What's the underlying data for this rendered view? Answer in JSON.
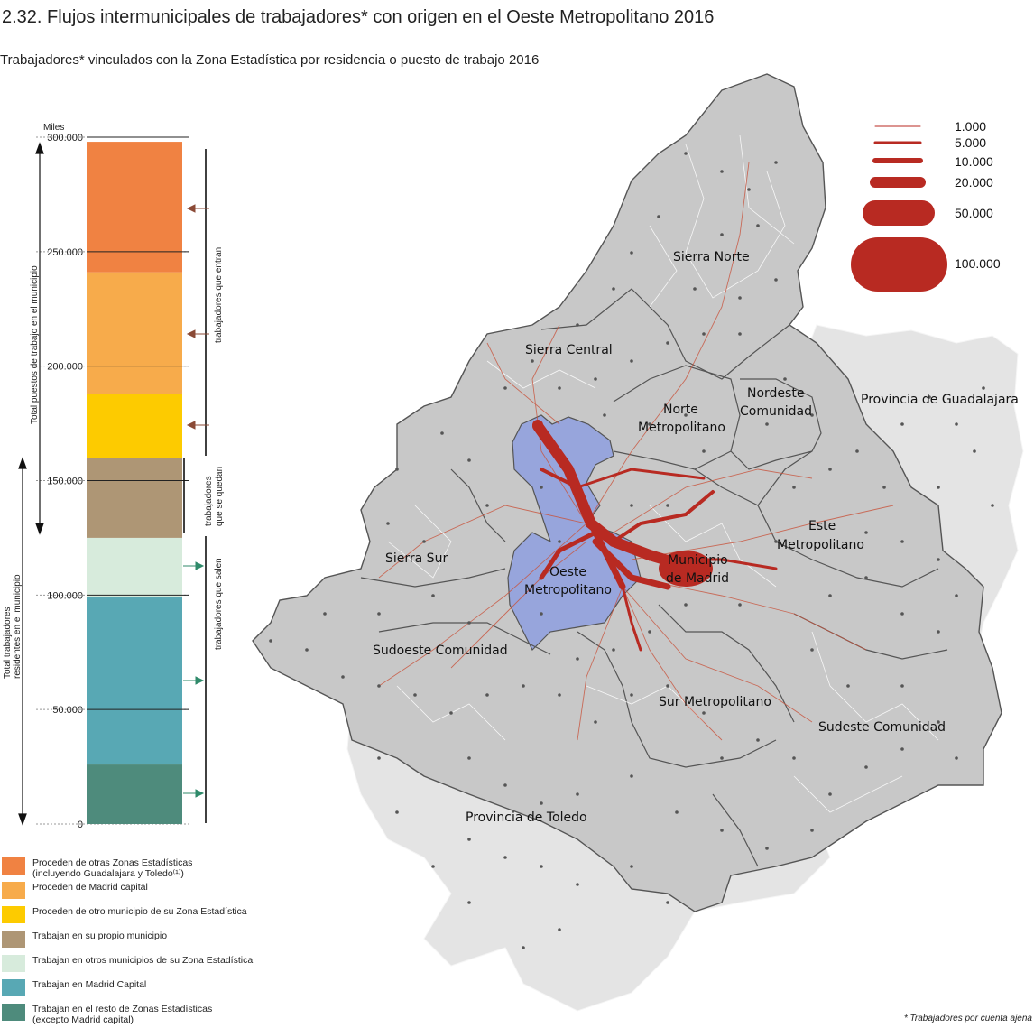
{
  "title": "2.32. Flujos intermunicipales de trabajadores* con origen en el Oeste Metropolitano 2016",
  "subtitle": "Trabajadores* vinculados con la Zona Estadística por residencia o puesto de trabajo 2016",
  "footnote": "* Trabajadores por cuenta ajena",
  "chart_data": {
    "type": "bar",
    "stacked": true,
    "unit_label": "Miles",
    "ylim": [
      0,
      300000
    ],
    "yticks": [
      "0",
      "50.000",
      "100.000",
      "150.000",
      "200.000",
      "250.000",
      "300.000"
    ],
    "segments": [
      {
        "name": "Trabajan en el resto de Zonas Estadísticas (excepto Madrid capital)",
        "value": 26000,
        "color": "#4e8b7c"
      },
      {
        "name": "Trabajan en Madrid Capital",
        "value": 73000,
        "color": "#58a8b4"
      },
      {
        "name": "Trabajan en otros municipios de su Zona Estadística",
        "value": 26000,
        "color": "#d7ebdc"
      },
      {
        "name": "Trabajan en su propio municipio",
        "value": 35000,
        "color": "#ae9675"
      },
      {
        "name": "Proceden de otro municipio de su Zona Estadística",
        "value": 28000,
        "color": "#fdcb00"
      },
      {
        "name": "Proceden de Madrid capital",
        "value": 53000,
        "color": "#f7ab4b"
      },
      {
        "name": "Proceden de otras Zonas Estadísticas (incluyendo Guadalajara y Toledo)",
        "value": 57000,
        "color": "#f08242"
      }
    ],
    "axis_labels": {
      "total_puestos": "Total puestos de trabajo en el municipio",
      "total_residentes": "Total trabajadores residentes en el municipio"
    },
    "bracket_labels": {
      "entran": "trabajadores que entran",
      "quedan": "trabajadores que se quedan",
      "salen": "trabajadores que salen"
    }
  },
  "legend": [
    {
      "label": "Proceden de otras Zonas Estadísticas\n(incluyendo Guadalajara y Toledo⁽¹⁾)",
      "color": "#f08242"
    },
    {
      "label": "Proceden de Madrid capital",
      "color": "#f7ab4b"
    },
    {
      "label": "Proceden de otro municipio de su Zona Estadística",
      "color": "#fdcb00"
    },
    {
      "label": "Trabajan en su propio municipio",
      "color": "#ae9675"
    },
    {
      "label": "Trabajan en otros municipios de su Zona Estadística",
      "color": "#d7ebdc"
    },
    {
      "label": "Trabajan en Madrid Capital",
      "color": "#58a8b4"
    },
    {
      "label": "Trabajan en el resto de Zonas Estadísticas\n (excepto Madrid capital)",
      "color": "#4e8b7c"
    }
  ],
  "map": {
    "regions": {
      "sierra_norte": "Sierra Norte",
      "sierra_central": "Sierra Central",
      "nordeste_1": "Nordeste",
      "nordeste_2": "Comunidad",
      "norte_1": "Norte",
      "norte_2": "Metropolitano",
      "guadalajara": "Provincia de Guadalajara",
      "este_1": "Este",
      "este_2": "Metropolitano",
      "sierra_sur": "Sierra Sur",
      "oeste_1": "Oeste",
      "oeste_2": "Metropolitano",
      "madrid_1": "Municipio",
      "madrid_2": "de Madrid",
      "sudoeste": "Sudoeste Comunidad",
      "sur": "Sur Metropolitano",
      "sudeste": "Sudeste Comunidad",
      "toledo": "Provincia de Toledo"
    },
    "flow_legend": [
      "1.000",
      "5.000",
      "10.000",
      "20.000",
      "50.000",
      "100.000"
    ],
    "colors": {
      "flow": "#b82a22",
      "zone_highlight": "#97a5dc",
      "region": "#c8c8c8",
      "province": "#e4e4e4"
    }
  }
}
